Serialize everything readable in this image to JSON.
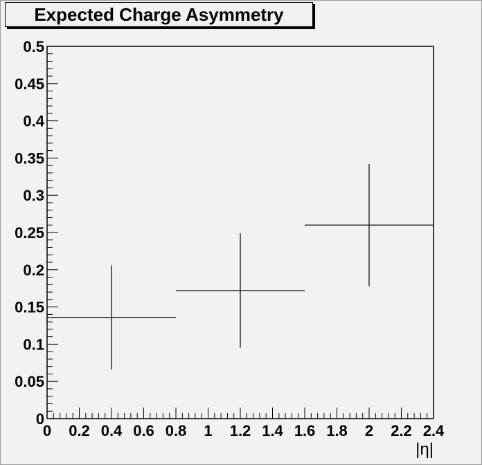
{
  "chart_data": {
    "type": "scatter",
    "title": "Expected Charge Asymmetry",
    "xlabel": "|η|",
    "ylabel": "",
    "xlim": [
      0,
      2.4
    ],
    "ylim": [
      0,
      0.5
    ],
    "x_ticks": [
      "0",
      "0.2",
      "0.4",
      "0.6",
      "0.8",
      "1",
      "1.2",
      "1.4",
      "1.6",
      "1.8",
      "2",
      "2.2",
      "2.4"
    ],
    "y_ticks": [
      "0",
      "0.05",
      "0.1",
      "0.15",
      "0.2",
      "0.25",
      "0.3",
      "0.35",
      "0.4",
      "0.45",
      "0.5"
    ],
    "points": [
      {
        "x": 0.4,
        "x_low": 0.0,
        "x_high": 0.8,
        "y": 0.136,
        "y_err": 0.07
      },
      {
        "x": 1.2,
        "x_low": 0.8,
        "x_high": 1.6,
        "y": 0.172,
        "y_err": 0.077
      },
      {
        "x": 2.0,
        "x_low": 1.6,
        "x_high": 2.4,
        "y": 0.26,
        "y_err": 0.082
      }
    ],
    "grid": false,
    "colors": {
      "background": "#f2f2f2",
      "axis": "#000000",
      "marker": "#000000"
    }
  }
}
